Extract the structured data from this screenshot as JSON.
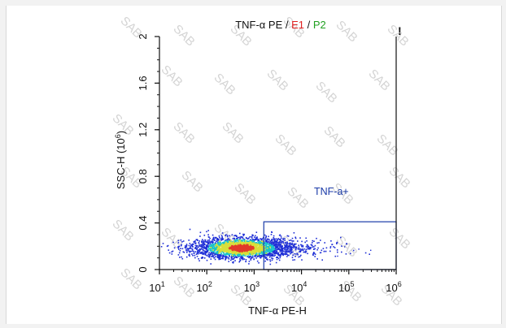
{
  "chart_data": {
    "type": "scatter",
    "title_parts": [
      {
        "text": "TNF-α PE",
        "color": "#111111"
      },
      {
        "text": " / ",
        "color": "#111111"
      },
      {
        "text": "E1",
        "color": "#e02020"
      },
      {
        "text": " / ",
        "color": "#111111"
      },
      {
        "text": "P2",
        "color": "#20a020"
      }
    ],
    "corner_mark": "!",
    "xlabel": "TNF-α PE-H",
    "ylabel": "SSC-H  (10",
    "ylabel_exp": "6",
    "ylabel_close": ")",
    "x_scale": "log",
    "xlim": [
      10,
      1000000
    ],
    "ylim": [
      0,
      2
    ],
    "x_ticks": [
      {
        "value": 10,
        "base": "10",
        "exp": "1"
      },
      {
        "value": 100,
        "base": "10",
        "exp": "2"
      },
      {
        "value": 1000,
        "base": "10",
        "exp": "3"
      },
      {
        "value": 10000,
        "base": "10",
        "exp": "4"
      },
      {
        "value": 100000,
        "base": "10",
        "exp": "5"
      },
      {
        "value": 1000000,
        "base": "10",
        "exp": "6"
      }
    ],
    "y_ticks": [
      {
        "value": 0,
        "label": "0"
      },
      {
        "value": 0.4,
        "label": "0.4"
      },
      {
        "value": 0.8,
        "label": "0.8"
      },
      {
        "value": 1.2,
        "label": "1.2"
      },
      {
        "value": 1.6,
        "label": "1.6"
      },
      {
        "value": 2,
        "label": "2"
      }
    ],
    "population": {
      "center_log10_x": 2.72,
      "center_y": 0.19,
      "log10_x_range": [
        1.0,
        5.6
      ],
      "y_range": [
        0.05,
        0.36
      ]
    },
    "gate": {
      "label": "TNF-a+",
      "x_min": 1600,
      "x_max": 1000000,
      "y_min": 0.0,
      "y_max": 0.41,
      "color": "#1a3aa8"
    },
    "watermark": "SAB",
    "colors": {
      "axis": "#111111",
      "gate": "#1a3aa8",
      "watermark": "#d4d4d4",
      "density_low": "#1f2fd6",
      "density_mid": "#19c3c9",
      "density_high": "#d8e03a",
      "density_peak": "#e23a2a"
    }
  }
}
